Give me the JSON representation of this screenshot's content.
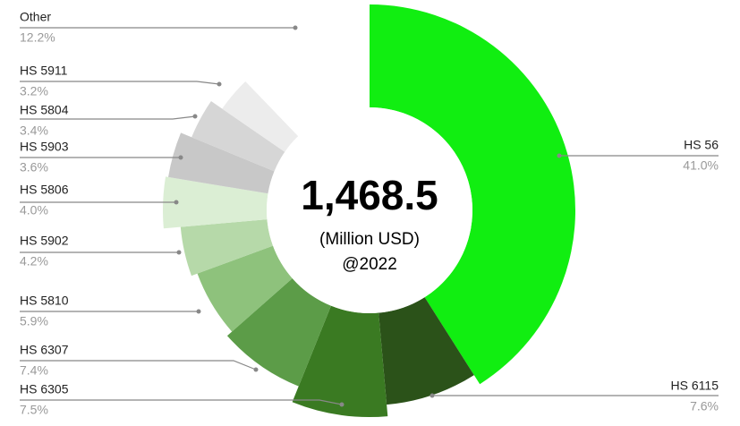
{
  "chart_data": {
    "type": "pie",
    "center_text": [
      "1,468.5",
      "(Million USD)",
      "@2022"
    ],
    "categories": [
      "HS 56",
      "HS 6115",
      "HS 6305",
      "HS 6307",
      "HS 5810",
      "HS 5902",
      "HS 5806",
      "HS 5903",
      "HS 5804",
      "HS 5911",
      "Other"
    ],
    "values": [
      41.0,
      7.6,
      7.5,
      7.4,
      5.9,
      4.2,
      4.0,
      3.6,
      3.4,
      3.2,
      12.2
    ],
    "value_labels": [
      "41.0%",
      "7.6%",
      "7.5%",
      "7.4%",
      "5.9%",
      "4.2%",
      "4.0%",
      "3.6%",
      "3.4%",
      "3.2%",
      "12.2%"
    ],
    "colors": [
      "#11ee11",
      "#2b5219",
      "#3a7a22",
      "#5c9c48",
      "#8ec27c",
      "#b6d9a9",
      "#dbeed4",
      "#c8c8c8",
      "#d6d6d6",
      "#ececec",
      "#ffffff"
    ]
  }
}
